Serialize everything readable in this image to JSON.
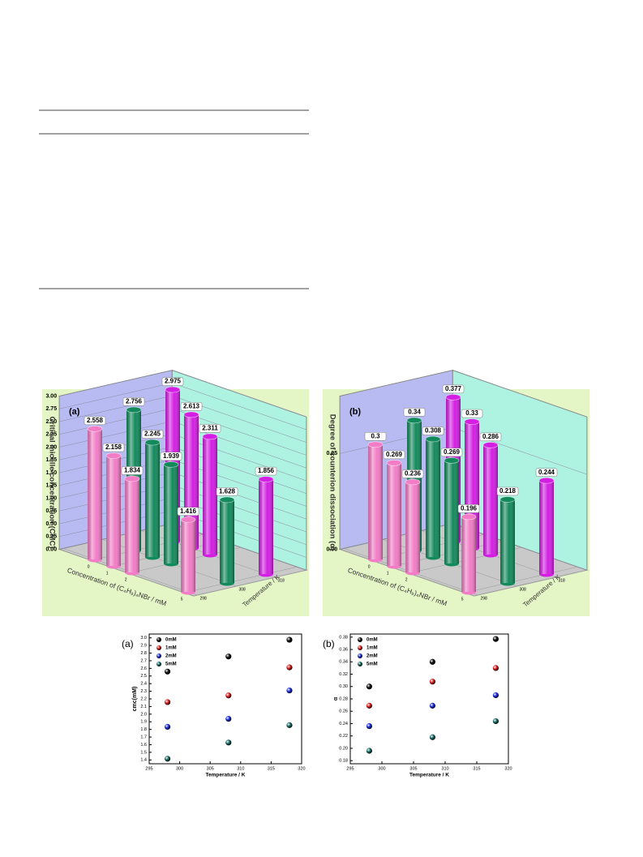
{
  "chart_data": [
    {
      "type": "bar3d",
      "panel_label": "(a)",
      "ylabel": "Critical micelle concentration (CMC)",
      "xlabel": "Concentration of (C₄H₉)₄NBr / mM",
      "zlabel": "Temperature / K",
      "x": [
        0,
        1,
        2,
        5
      ],
      "z": [
        298,
        308,
        318
      ],
      "ylim": [
        0,
        3
      ],
      "yticks": [
        {
          "value": 0,
          "label": "0.00"
        },
        {
          "value": 0.25,
          "label": "0.25"
        },
        {
          "value": 0.5,
          "label": "0.50"
        },
        {
          "value": 0.75,
          "label": "0.75"
        },
        {
          "value": 1,
          "label": "1.00"
        },
        {
          "value": 1.25,
          "label": "1.25"
        },
        {
          "value": 1.5,
          "label": "1.50"
        },
        {
          "value": 1.75,
          "label": "1.75"
        },
        {
          "value": 2,
          "label": "2.00"
        },
        {
          "value": 2.25,
          "label": "2.25"
        },
        {
          "value": 2.5,
          "label": "2.50"
        },
        {
          "value": 2.75,
          "label": "2.75"
        },
        {
          "value": 3,
          "label": "3.00"
        }
      ],
      "series": [
        {
          "color": "#f27cc6",
          "values": [
            2.558,
            2.158,
            1.834,
            1.416
          ]
        },
        {
          "color": "#138a5c",
          "values": [
            2.756,
            2.245,
            1.939,
            1.628
          ]
        },
        {
          "color": "#d41ee4",
          "values": [
            2.975,
            2.613,
            2.311,
            1.856
          ]
        }
      ]
    },
    {
      "type": "bar3d",
      "panel_label": "(b)",
      "ylabel": "Degree of counterion dissociation (α)",
      "xlabel": "Concentration of (C₄H₉)₄NBr / mM",
      "zlabel": "Temperature / K",
      "x": [
        0,
        1,
        2,
        5
      ],
      "z": [
        298,
        308,
        318
      ],
      "ylim": [
        0,
        0.4
      ],
      "yticks": [
        {
          "value": 0,
          "label": "0.00"
        },
        0.25
      ],
      "series": [
        {
          "color": "#f27cc6",
          "values": [
            0.3,
            0.269,
            0.236,
            0.196
          ]
        },
        {
          "color": "#138a5c",
          "values": [
            0.34,
            0.308,
            0.269,
            0.218
          ]
        },
        {
          "color": "#d41ee4",
          "values": [
            0.377,
            0.33,
            0.286,
            0.244
          ]
        }
      ]
    },
    {
      "type": "scatter",
      "panel_label": "(a)",
      "xlabel": "Temperature / K",
      "ylabel": "cmc(mM)",
      "x": [
        298,
        308,
        318
      ],
      "xlim": [
        295,
        320
      ],
      "xticks": [
        295,
        300,
        305,
        310,
        315,
        320
      ],
      "ylim": [
        1.35,
        3.05
      ],
      "yticks": [
        1.4,
        1.5,
        1.6,
        1.7,
        1.8,
        1.9,
        {
          "value": 2,
          "label": "2.0"
        },
        2.1,
        2.2,
        2.3,
        2.4,
        2.5,
        2.6,
        2.7,
        2.8,
        2.9,
        {
          "value": 3,
          "label": "3.0"
        }
      ],
      "legend": "upper left",
      "series": [
        {
          "name": "0mM",
          "color": "#111111",
          "values": [
            2.558,
            2.756,
            2.975
          ]
        },
        {
          "name": "1mM",
          "color": "#e02020",
          "values": [
            2.158,
            2.245,
            2.613
          ]
        },
        {
          "name": "2mM",
          "color": "#2030e0",
          "values": [
            1.834,
            1.939,
            2.311
          ]
        },
        {
          "name": "5mM",
          "color": "#1a6e66",
          "values": [
            1.416,
            1.628,
            1.856
          ]
        }
      ]
    },
    {
      "type": "scatter",
      "panel_label": "(b)",
      "xlabel": "Temperature / K",
      "ylabel": "α",
      "x": [
        298,
        308,
        318
      ],
      "xlim": [
        295,
        320
      ],
      "xticks": [
        295,
        300,
        305,
        310,
        315,
        320
      ],
      "ylim": [
        0.175,
        0.385
      ],
      "yticks": [
        0.18,
        {
          "value": 0.2,
          "label": "0.20"
        },
        0.22,
        0.24,
        0.26,
        0.28,
        {
          "value": 0.3,
          "label": "0.30"
        },
        0.32,
        0.34,
        0.36,
        0.38
      ],
      "legend": "upper left",
      "series": [
        {
          "name": "0mM",
          "color": "#111111",
          "values": [
            0.3,
            0.34,
            0.377
          ]
        },
        {
          "name": "1mM",
          "color": "#e02020",
          "values": [
            0.269,
            0.308,
            0.33
          ]
        },
        {
          "name": "2mM",
          "color": "#2030e0",
          "values": [
            0.236,
            0.269,
            0.286
          ]
        },
        {
          "name": "5mM",
          "color": "#1a6e66",
          "values": [
            0.196,
            0.218,
            0.244
          ]
        }
      ]
    }
  ]
}
